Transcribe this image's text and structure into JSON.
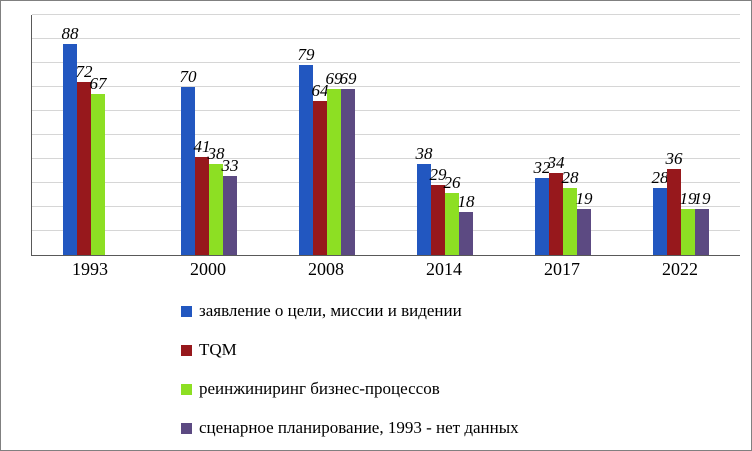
{
  "chart_data": {
    "type": "bar",
    "categories": [
      "1993",
      "2000",
      "2008",
      "2014",
      "2017",
      "2022"
    ],
    "series": [
      {
        "name": "заявление о цели, миссии и видении",
        "color": "#2257c0",
        "values": [
          88,
          70,
          79,
          38,
          32,
          28
        ]
      },
      {
        "name": "TQM",
        "color": "#97181c",
        "values": [
          72,
          41,
          64,
          29,
          34,
          36
        ]
      },
      {
        "name": "реинжиниринг бизнес-процессов",
        "color": "#8ddf23",
        "values": [
          67,
          38,
          69,
          26,
          28,
          19
        ]
      },
      {
        "name": "сценарное планирование, 1993 - нет данных",
        "color": "#5c4a82",
        "values": [
          null,
          33,
          69,
          18,
          19,
          19
        ]
      }
    ],
    "title": "",
    "xlabel": "",
    "ylabel": "",
    "ylim": [
      0,
      100
    ],
    "grid_step": 10,
    "grid": true,
    "legend_position": "bottom-left",
    "data_labels": true
  }
}
